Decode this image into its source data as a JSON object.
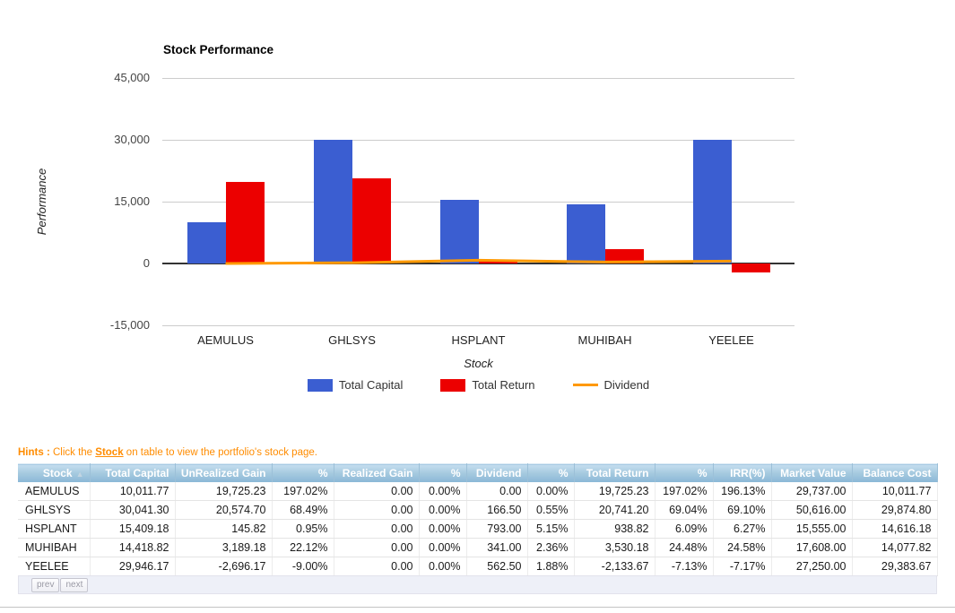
{
  "chart_data": {
    "type": "bar",
    "title": "Stock Performance",
    "xlabel": "Stock",
    "ylabel": "Performance",
    "categories": [
      "AEMULUS",
      "GHLSYS",
      "HSPLANT",
      "MUHIBAH",
      "YEELEE"
    ],
    "series": [
      {
        "name": "Total Capital",
        "type": "bar",
        "color": "#3B5ED1",
        "values": [
          10011.77,
          30041.3,
          15409.18,
          14418.82,
          29946.17
        ]
      },
      {
        "name": "Total Return",
        "type": "bar",
        "color": "#EC0000",
        "values": [
          19725.23,
          20741.2,
          938.82,
          3530.18,
          -2133.67
        ]
      },
      {
        "name": "Dividend",
        "type": "line",
        "color": "#FF9900",
        "values": [
          0.0,
          166.5,
          793.0,
          341.0,
          562.5
        ]
      }
    ],
    "ylim": [
      -15000,
      45000
    ],
    "y_ticks": [
      {
        "value": 45000,
        "label": "45,000"
      },
      {
        "value": 30000,
        "label": "30,000"
      },
      {
        "value": 15000,
        "label": "15,000"
      },
      {
        "value": 0,
        "label": "0"
      },
      {
        "value": -15000,
        "label": "-15,000"
      }
    ],
    "grid": true,
    "legend_position": "bottom"
  },
  "hints": {
    "prefix": "Hints : ",
    "before_link": "Click the ",
    "link": "Stock",
    "after_link": " on table to view the portfolio's stock page."
  },
  "table": {
    "sort_icon": "▲",
    "headers": [
      "Stock",
      "Total Capital",
      "UnRealized Gain",
      "%",
      "Realized Gain",
      "%",
      "Dividend",
      "%",
      "Total Return",
      "%",
      "IRR(%)",
      "Market Value",
      "Balance Cost"
    ],
    "rows": [
      [
        "AEMULUS",
        "10,011.77",
        "19,725.23",
        "197.02%",
        "0.00",
        "0.00%",
        "0.00",
        "0.00%",
        "19,725.23",
        "197.02%",
        "196.13%",
        "29,737.00",
        "10,011.77"
      ],
      [
        "GHLSYS",
        "30,041.30",
        "20,574.70",
        "68.49%",
        "0.00",
        "0.00%",
        "166.50",
        "0.55%",
        "20,741.20",
        "69.04%",
        "69.10%",
        "50,616.00",
        "29,874.80"
      ],
      [
        "HSPLANT",
        "15,409.18",
        "145.82",
        "0.95%",
        "0.00",
        "0.00%",
        "793.00",
        "5.15%",
        "938.82",
        "6.09%",
        "6.27%",
        "15,555.00",
        "14,616.18"
      ],
      [
        "MUHIBAH",
        "14,418.82",
        "3,189.18",
        "22.12%",
        "0.00",
        "0.00%",
        "341.00",
        "2.36%",
        "3,530.18",
        "24.48%",
        "24.58%",
        "17,608.00",
        "14,077.82"
      ],
      [
        "YEELEE",
        "29,946.17",
        "-2,696.17",
        "-9.00%",
        "0.00",
        "0.00%",
        "562.50",
        "1.88%",
        "-2,133.67",
        "-7.13%",
        "-7.17%",
        "27,250.00",
        "29,383.67"
      ]
    ]
  },
  "pager": {
    "prev_label": "prev",
    "next_label": "next"
  }
}
